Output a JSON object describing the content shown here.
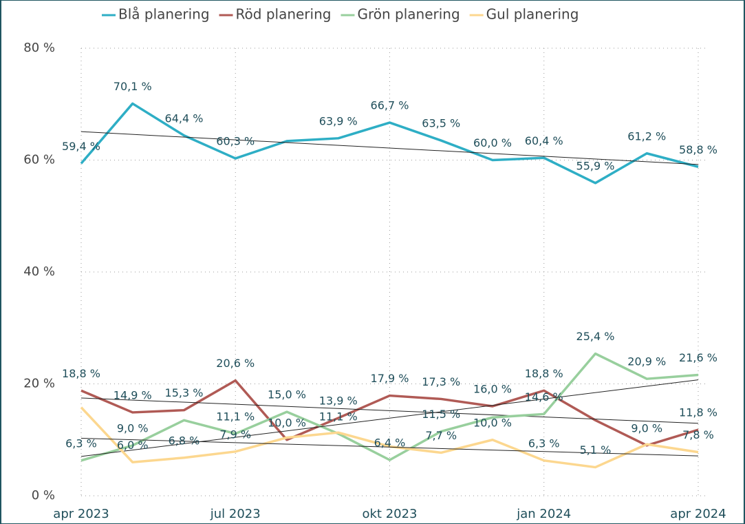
{
  "chart_data": {
    "type": "line",
    "categories": [
      "apr 2023",
      null,
      null,
      "jul 2023",
      null,
      null,
      "okt 2023",
      null,
      null,
      "jan 2024",
      null,
      null,
      "apr 2024"
    ],
    "series": [
      {
        "name": "Blå planering",
        "color": "#2eaec5",
        "values": [
          59.4,
          70.1,
          64.4,
          60.3,
          63.4,
          63.9,
          66.7,
          63.5,
          60.0,
          60.4,
          55.9,
          61.2,
          58.8
        ],
        "value_labels": [
          "59,4 %",
          "70,1 %",
          "64,4 %",
          "60,3 %",
          null,
          "63,9 %",
          "66,7 %",
          "63,5 %",
          "60,0 %",
          "60,4 %",
          "55,9 %",
          "61,2 %",
          "58,8 %"
        ]
      },
      {
        "name": "Röd planering",
        "color": "#b05a55",
        "values": [
          18.8,
          14.9,
          15.3,
          20.6,
          10.0,
          13.9,
          17.9,
          17.3,
          16.0,
          18.8,
          13.5,
          9.0,
          11.8
        ],
        "value_labels": [
          "18,8 %",
          "14,9 %",
          "15,3 %",
          "20,6 %",
          "10,0 %",
          "13,9 %",
          "17,9 %",
          "17,3 %",
          "16,0 %",
          "18,8 %",
          null,
          "9,0 %",
          "11,8 %"
        ]
      },
      {
        "name": "Grön planering",
        "color": "#98cf9d",
        "values": [
          6.3,
          9.0,
          13.5,
          11.1,
          15.0,
          11.1,
          6.4,
          11.5,
          14.0,
          14.6,
          25.4,
          20.9,
          21.6
        ],
        "value_labels": [
          "6,3 %",
          "9,0 %",
          null,
          "11,1 %",
          "15,0 %",
          "11,1 %",
          "6,4 %",
          "11,5 %",
          null,
          "14,6 %",
          "25,4 %",
          "20,9 %",
          "21,6 %"
        ]
      },
      {
        "name": "Gul planering",
        "color": "#fcd78f",
        "values": [
          15.8,
          6.0,
          6.8,
          7.9,
          10.4,
          11.3,
          8.8,
          7.7,
          10.0,
          6.3,
          5.1,
          9.2,
          7.8
        ],
        "value_labels": [
          null,
          "6,0 %",
          "6,8 %",
          "7,9 %",
          null,
          null,
          null,
          "7,7 %",
          "10,0 %",
          "6,3 %",
          "5,1 %",
          null,
          "7,8 %"
        ]
      }
    ],
    "ylim": [
      0,
      80
    ],
    "yticks": [
      {
        "value": 0,
        "label": "0 %"
      },
      {
        "value": 20,
        "label": "20 %"
      },
      {
        "value": 40,
        "label": "40 %"
      },
      {
        "value": 60,
        "label": "60 %"
      },
      {
        "value": 80,
        "label": "80 %"
      }
    ],
    "grid": true,
    "trendlines": true,
    "legend": "top"
  }
}
